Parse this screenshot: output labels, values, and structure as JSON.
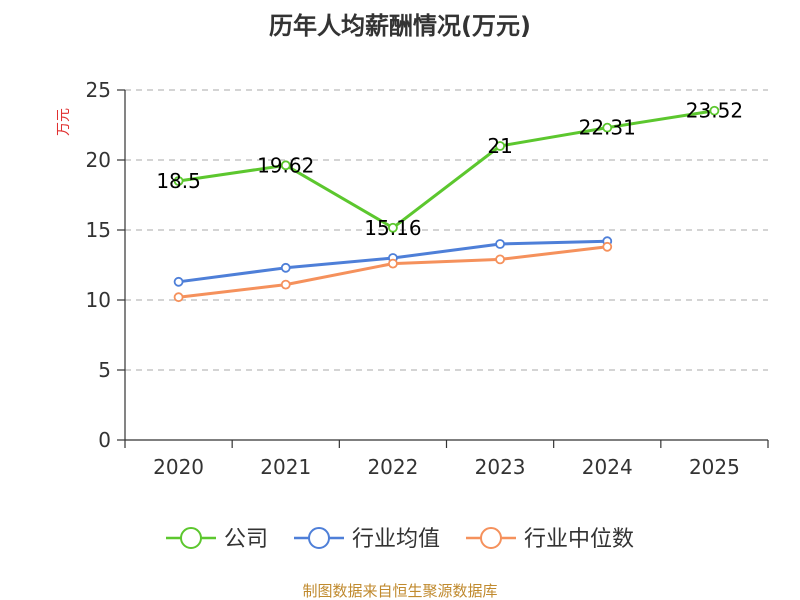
{
  "chart_data": {
    "type": "line",
    "title": "历年人均薪酬情况(万元)",
    "ylabel": "万元",
    "xlabel": "",
    "categories": [
      "2020",
      "2021",
      "2022",
      "2023",
      "2024",
      "2025"
    ],
    "ylim": [
      0,
      25
    ],
    "yticks": [
      0,
      5,
      10,
      15,
      20,
      25
    ],
    "grid": true,
    "legend_position": "bottom",
    "series": [
      {
        "name": "公司",
        "color": "#5cc72e",
        "values": [
          18.5,
          19.62,
          15.16,
          21,
          22.31,
          23.52
        ],
        "labels": [
          "18.5",
          "19.62",
          "15.16",
          "21",
          "22.31",
          "23.52"
        ]
      },
      {
        "name": "行业均值",
        "color": "#4e7fd8",
        "values": [
          11.3,
          12.3,
          13.0,
          14.0,
          14.2,
          null
        ]
      },
      {
        "name": "行业中位数",
        "color": "#f5915c",
        "values": [
          10.2,
          11.1,
          12.6,
          12.9,
          13.8,
          null
        ]
      }
    ]
  },
  "source": "制图数据来自恒生聚源数据库"
}
